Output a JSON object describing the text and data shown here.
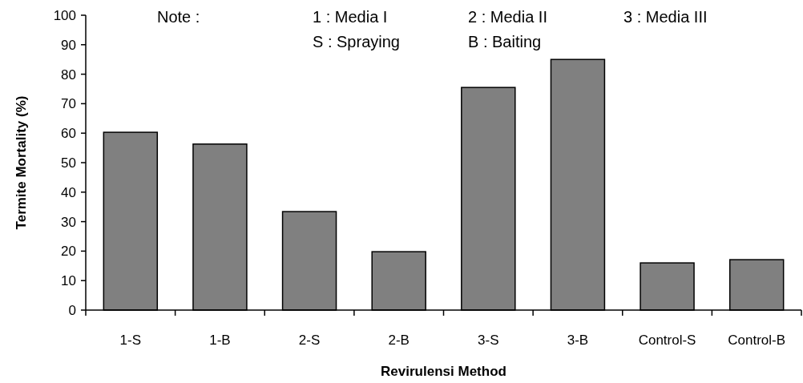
{
  "chart_data": {
    "type": "bar",
    "xlabel": "Revirulensi Method",
    "ylabel": "Termite Mortality (%)",
    "categories": [
      "1-S",
      "1-B",
      "2-S",
      "2-B",
      "3-S",
      "3-B",
      "Control-S",
      "Control-B"
    ],
    "values": [
      60.3,
      56.3,
      33.4,
      19.8,
      75.5,
      85,
      16,
      17.1
    ],
    "color": "#808080",
    "ylim": [
      0,
      100
    ],
    "yticks": [
      0,
      10,
      20,
      30,
      40,
      50,
      60,
      70,
      80,
      90,
      100
    ],
    "grid": false,
    "annotations": [
      "Note :",
      "1 : Media I",
      "2 : Media II",
      "3 : Media III",
      "S : Spraying",
      "B : Baiting"
    ]
  }
}
